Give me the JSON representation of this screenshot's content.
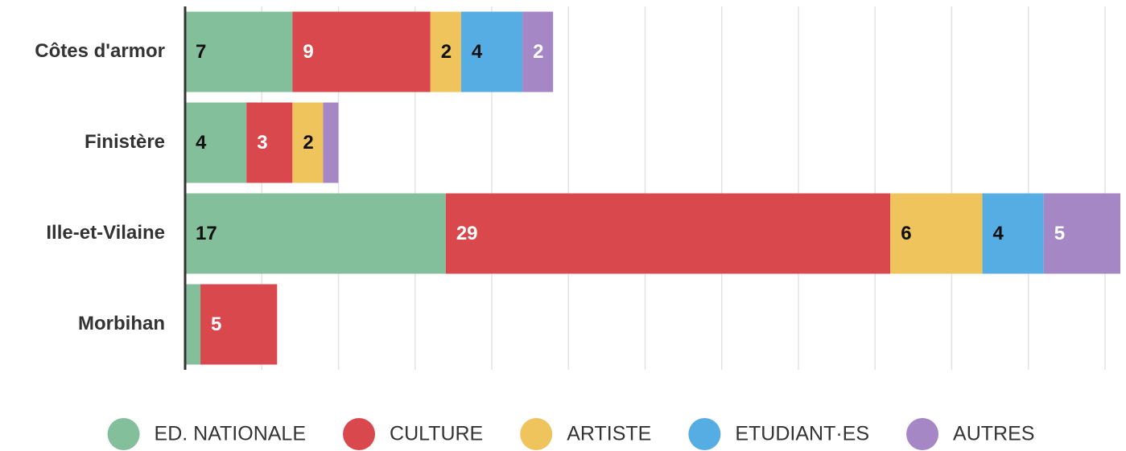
{
  "chart_data": {
    "type": "stacked-bar-horizontal",
    "categories": [
      "Côtes d'armor",
      "Finistère",
      "Ille-et-Vilaine",
      "Morbihan"
    ],
    "series": [
      {
        "name": "ED. NATIONALE",
        "color": "#84bf9c",
        "values": [
          7,
          4,
          17,
          1
        ]
      },
      {
        "name": "CULTURE",
        "color": "#d9484d",
        "values": [
          9,
          3,
          29,
          5
        ]
      },
      {
        "name": "ARTISTE",
        "color": "#efc45c",
        "values": [
          2,
          2,
          6,
          0
        ]
      },
      {
        "name": "ETUDIANT·ES",
        "color": "#55ade3",
        "values": [
          4,
          0,
          4,
          0
        ]
      },
      {
        "name": "AUTRES",
        "color": "#a487c4",
        "values": [
          2,
          1,
          5,
          0
        ]
      }
    ],
    "xlim": [
      0,
      61
    ],
    "xticks": [
      0,
      5,
      10,
      15,
      20,
      25,
      30,
      35,
      40,
      45,
      50,
      55,
      60
    ],
    "grid": true,
    "legend": "bottom"
  }
}
